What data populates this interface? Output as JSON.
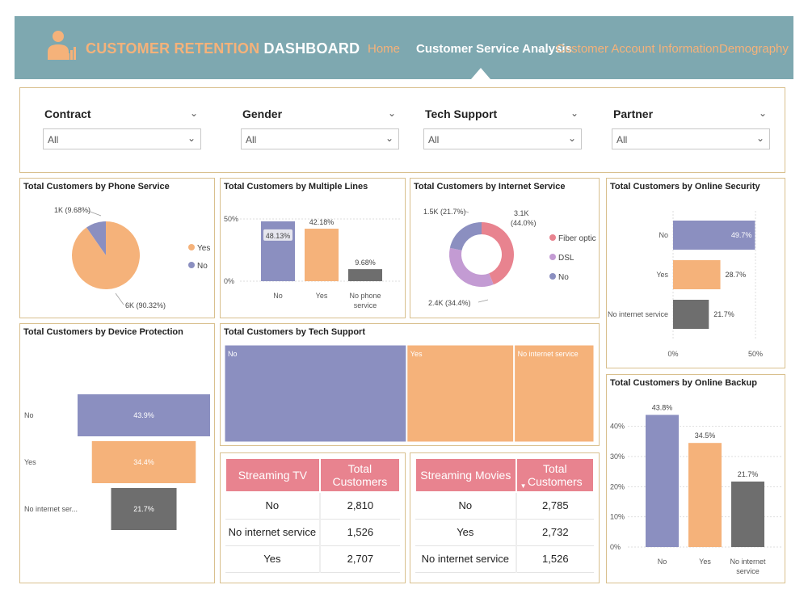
{
  "header": {
    "title_part1": "CUSTOMER RETENTION",
    "title_part2": "DASHBOARD",
    "logo_icon": "person-chart-icon",
    "nav": [
      {
        "label": "Home",
        "active": false
      },
      {
        "label": "Customer Service Analysis",
        "active": true
      },
      {
        "label": "Customer Account Information",
        "active": false
      },
      {
        "label": "Demography",
        "active": false
      }
    ]
  },
  "filters": [
    {
      "label": "Contract",
      "value": "All"
    },
    {
      "label": "Gender",
      "value": "All"
    },
    {
      "label": "Tech Support",
      "value": "All"
    },
    {
      "label": "Partner",
      "value": "All"
    }
  ],
  "colors": {
    "orange": "#f5b27a",
    "purple": "#8b8fc0",
    "gray": "#6e6e6e",
    "pink": "#e8838f",
    "lilac": "#c39bd3",
    "header": "#7ea8b0",
    "border": "#d9c08e"
  },
  "chart_data": [
    {
      "id": "phone_service",
      "type": "pie",
      "title": "Total Customers by Phone Service",
      "slices": [
        {
          "name": "Yes",
          "value": 90.32,
          "label": "6K (90.32%)",
          "color": "#f5b27a"
        },
        {
          "name": "No",
          "value": 9.68,
          "label": "1K (9.68%)",
          "color": "#8b8fc0"
        }
      ],
      "legend": [
        "Yes",
        "No"
      ]
    },
    {
      "id": "multiple_lines",
      "type": "bar",
      "title": "Total Customers by Multiple Lines",
      "categories": [
        "No",
        "Yes",
        "No phone service"
      ],
      "values": [
        48.13,
        42.18,
        9.68
      ],
      "labels": [
        "48.13%",
        "42.18%",
        "9.68%"
      ],
      "colors": [
        "#8b8fc0",
        "#f5b27a",
        "#6e6e6e"
      ],
      "yticks": [
        "50%",
        "0%"
      ],
      "ylim": [
        0,
        50
      ]
    },
    {
      "id": "internet_service",
      "type": "pie",
      "title": "Total Customers by Internet Service",
      "slices": [
        {
          "name": "Fiber optic",
          "value": 44.0,
          "label": "3.1K (44.0%)",
          "color": "#e8838f"
        },
        {
          "name": "DSL",
          "value": 34.4,
          "label": "2.4K (34.4%)",
          "color": "#c39bd3"
        },
        {
          "name": "No",
          "value": 21.7,
          "label": "1.5K (21.7%)",
          "color": "#8b8fc0"
        }
      ],
      "legend": [
        "Fiber optic",
        "DSL",
        "No"
      ]
    },
    {
      "id": "online_security",
      "type": "bar",
      "orientation": "horizontal",
      "title": "Total Customers by Online Security",
      "categories": [
        "No",
        "Yes",
        "No internet service"
      ],
      "values": [
        49.7,
        28.7,
        21.7
      ],
      "labels": [
        "49.7%",
        "28.7%",
        "21.7%"
      ],
      "colors": [
        "#8b8fc0",
        "#f5b27a",
        "#6e6e6e"
      ],
      "xticks": [
        "0%",
        "50%"
      ],
      "xlim": [
        0,
        50
      ]
    },
    {
      "id": "device_protection",
      "type": "funnel",
      "title": "Total Customers by Device Protection",
      "categories": [
        "No",
        "Yes",
        "No internet ser..."
      ],
      "values": [
        43.9,
        34.4,
        21.7
      ],
      "labels": [
        "43.9%",
        "34.4%",
        "21.7%"
      ],
      "colors": [
        "#8b8fc0",
        "#f5b27a",
        "#6e6e6e"
      ]
    },
    {
      "id": "tech_support",
      "type": "treemap",
      "title": "Total Customers by Tech Support",
      "categories": [
        "No",
        "Yes",
        "No internet service"
      ],
      "values": [
        49.3,
        29.0,
        21.7
      ],
      "colors": [
        "#8b8fc0",
        "#f5b27a",
        "#f5b27a"
      ]
    },
    {
      "id": "online_backup",
      "type": "bar",
      "title": "Total Customers by Online Backup",
      "categories": [
        "No",
        "Yes",
        "No internet service"
      ],
      "values": [
        43.8,
        34.5,
        21.7
      ],
      "labels": [
        "43.8%",
        "34.5%",
        "21.7%"
      ],
      "colors": [
        "#8b8fc0",
        "#f5b27a",
        "#6e6e6e"
      ],
      "yticks": [
        "40%",
        "30%",
        "20%",
        "10%",
        "0%"
      ],
      "ylim": [
        0,
        45
      ]
    }
  ],
  "streaming_tv": {
    "headers": [
      "Streaming TV",
      "Total Customers"
    ],
    "rows": [
      [
        "No",
        "2,810"
      ],
      [
        "No internet service",
        "1,526"
      ],
      [
        "Yes",
        "2,707"
      ]
    ]
  },
  "streaming_movies": {
    "headers": [
      "Streaming Movies",
      "Total Customers"
    ],
    "sort_icon": "sort-down-icon",
    "rows": [
      [
        "No",
        "2,785"
      ],
      [
        "Yes",
        "2,732"
      ],
      [
        "No internet service",
        "1,526"
      ]
    ]
  }
}
